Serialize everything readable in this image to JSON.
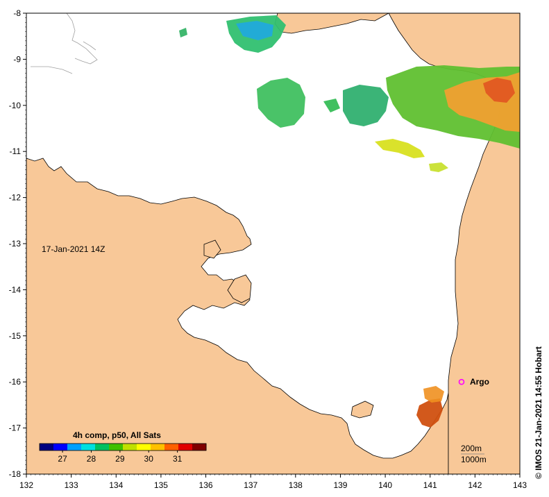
{
  "map": {
    "date_label": "17-Jan-2021 14Z",
    "credit": "© IMOS 21-Jan-2021 14:55 Hobart",
    "lon_range": [
      132,
      143
    ],
    "lat_range": [
      -18,
      -8
    ],
    "x_ticks": [
      "132",
      "133",
      "134",
      "135",
      "136",
      "137",
      "138",
      "139",
      "140",
      "141",
      "142",
      "143"
    ],
    "y_ticks": [
      "-8",
      "-9",
      "-10",
      "-11",
      "-12",
      "-13",
      "-14",
      "-15",
      "-16",
      "-17",
      "-18"
    ],
    "land_color": "#f8c898",
    "sea_color": "#ffffff"
  },
  "legend": {
    "title": "4h comp, p50, All Sats",
    "ticks": [
      "27",
      "28",
      "29",
      "30",
      "31"
    ],
    "tick_values": [
      27,
      28,
      29,
      30,
      31
    ],
    "range": [
      26.2,
      32.0
    ],
    "colors": [
      "#000080",
      "#0000ff",
      "#00a0ff",
      "#00e0e0",
      "#00c060",
      "#40c000",
      "#c0e000",
      "#ffff00",
      "#ffc000",
      "#ff6000",
      "#e00000",
      "#800000"
    ]
  },
  "marker": {
    "label": "Argo",
    "lon": 141.7,
    "lat": -16.0,
    "color": "#ff00ff"
  },
  "contours": {
    "line1": "200m",
    "line2": "1000m"
  }
}
